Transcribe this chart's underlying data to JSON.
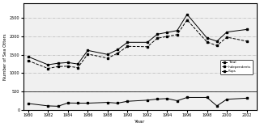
{
  "years": [
    1980,
    1982,
    1983,
    1984,
    1985,
    1986,
    1988,
    1989,
    1990,
    1992,
    1993,
    1994,
    1995,
    1996,
    1998,
    1999,
    2000,
    2002
  ],
  "total": [
    1450,
    1230,
    1270,
    1290,
    1250,
    1620,
    1510,
    1640,
    1840,
    1840,
    2060,
    2110,
    2160,
    2600,
    1960,
    1870,
    2120,
    2190
  ],
  "independents": [
    1340,
    1130,
    1180,
    1190,
    1150,
    1520,
    1410,
    1540,
    1730,
    1720,
    1950,
    2000,
    2050,
    2450,
    1850,
    1750,
    1980,
    1870
  ],
  "pups": [
    175,
    110,
    100,
    190,
    185,
    185,
    205,
    185,
    235,
    265,
    295,
    310,
    250,
    340,
    340,
    110,
    290,
    320
  ],
  "xlabel": "Year",
  "ylabel": "Number of Sea Otters",
  "ylim": [
    0,
    2900
  ],
  "xlim": [
    1979.5,
    2003
  ],
  "yticks": [
    0,
    500,
    1000,
    1500,
    2000,
    2500
  ],
  "xticks": [
    1980,
    1982,
    1984,
    1986,
    1988,
    1990,
    1992,
    1994,
    1996,
    1998,
    2000,
    2002
  ],
  "legend_labels": [
    "Total",
    "Independents",
    "Pups"
  ],
  "bg_color": "#f0f0f0",
  "fig_color": "#ffffff",
  "grid_color": "#aaaaaa"
}
